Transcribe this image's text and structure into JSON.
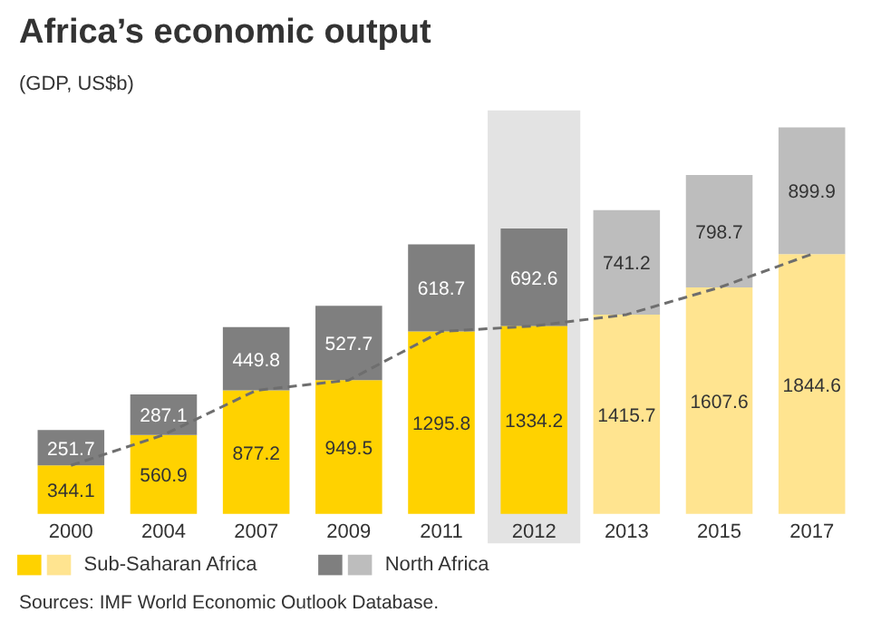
{
  "chart_data": {
    "type": "bar",
    "title": "Africa’s economic output",
    "subtitle": "(GDP, US$b)",
    "categories": [
      "2000",
      "2004",
      "2007",
      "2009",
      "2011",
      "2012",
      "2013",
      "2015",
      "2017"
    ],
    "stacked": true,
    "data_labels": true,
    "legend": "bottom",
    "grid": false,
    "series": [
      {
        "name": "Sub-Saharan Africa",
        "colors": [
          "#ffd200",
          "#ffd200",
          "#ffd200",
          "#ffd200",
          "#ffd200",
          "#ffd200",
          "#ffe490",
          "#ffe490",
          "#ffe490"
        ],
        "values": [
          344.1,
          560.9,
          877.2,
          949.5,
          1295.8,
          1334.2,
          1415.7,
          1607.6,
          1844.6
        ]
      },
      {
        "name": "North Africa",
        "colors": [
          "#7f7f7f",
          "#7f7f7f",
          "#7f7f7f",
          "#7f7f7f",
          "#7f7f7f",
          "#7f7f7f",
          "#bdbdbd",
          "#bdbdbd",
          "#bdbdbd"
        ],
        "values": [
          251.7,
          287.1,
          449.8,
          527.7,
          618.7,
          692.6,
          741.2,
          798.7,
          899.9
        ]
      },
      {
        "type": "line",
        "color": "#6e6e6e",
        "line_style": "dashed",
        "value_labels": [
          null,
          null,
          null,
          null,
          null,
          null,
          null,
          null,
          null
        ],
        "values": [
          344.1,
          560.9,
          877.2,
          949.5,
          1295.8,
          1334.2,
          1415.7,
          1607.6,
          1844.6
        ]
      }
    ],
    "bands": [
      {
        "axis": "x",
        "from": "2012",
        "to": "2012",
        "color": "#e3e3e3"
      }
    ],
    "annotations": [
      "Sources: IMF World Economic Outlook Database."
    ]
  }
}
